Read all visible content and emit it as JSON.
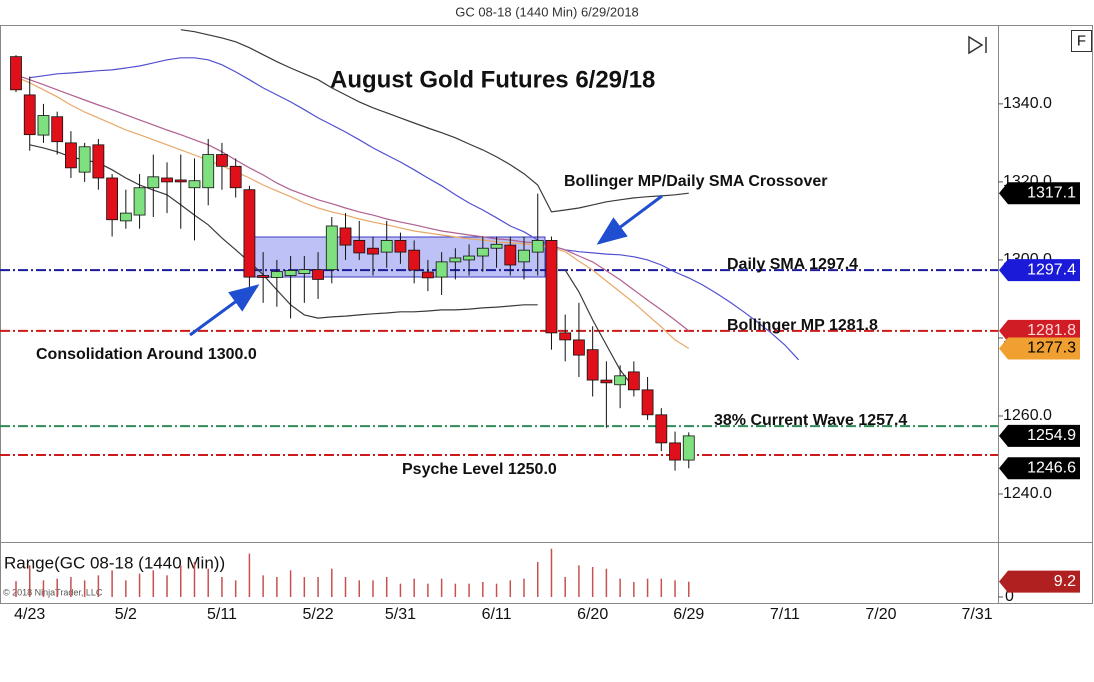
{
  "chart_data": {
    "type": "candlestick",
    "window_title": "GC 08-18 (1440 Min)  6/29/2018",
    "title": "August Gold Futures 6/29/18",
    "button": "F",
    "categories": [
      null,
      "4/23",
      null,
      null,
      null,
      null,
      null,
      null,
      "5/2",
      null,
      null,
      null,
      null,
      null,
      null,
      "5/11",
      null,
      null,
      null,
      null,
      null,
      null,
      "5/22",
      null,
      null,
      null,
      null,
      null,
      "5/31",
      null,
      null,
      null,
      null,
      null,
      null,
      "6/11",
      null,
      null,
      null,
      null,
      null,
      null,
      "6/20",
      null,
      null,
      null,
      null,
      null,
      null,
      "6/29",
      null,
      null,
      null,
      null,
      null,
      null,
      "7/11",
      null,
      null,
      null,
      null,
      null,
      null,
      "7/20",
      null,
      null,
      null,
      null,
      null,
      null,
      "7/31"
    ],
    "open": [
      1352.1,
      1342.3,
      1332,
      1336.7,
      1330,
      1322.5,
      1329.5,
      1321,
      1310,
      1311.5,
      1318.5,
      1321,
      1320.5,
      1318.5,
      1318.5,
      1327,
      1324,
      1318,
      1296,
      1295.5,
      1296,
      1296.5,
      1297.5,
      1297.5,
      1308.2,
      1305,
      1303,
      1302,
      1305,
      1302.5,
      1296.9,
      1295.6,
      1299.5,
      1300,
      1301,
      1303,
      1303.8,
      1299.5,
      1302,
      1305,
      1281.3,
      1279.5,
      1277,
      1269.2,
      1268,
      1271.3,
      1266.7,
      1260.3,
      1253.1,
      1248.7,
      null,
      null,
      null,
      null,
      null,
      null,
      null,
      null,
      null,
      null,
      null,
      null,
      null,
      null,
      null,
      null,
      null,
      null,
      null,
      null,
      null
    ],
    "high": [
      1352.5,
      1347,
      1340,
      1338,
      1333,
      1330,
      1331,
      1322,
      1318,
      1322,
      1327,
      1325,
      1327,
      1326,
      1331,
      1330,
      1326,
      1319,
      1302,
      1300,
      1301,
      1301,
      1302,
      1311,
      1312,
      1310,
      1306,
      1310,
      1307,
      1305,
      1300,
      1302,
      1303,
      1304,
      1306,
      1306,
      1306,
      1306,
      1317,
      1306,
      1286,
      1289,
      1283,
      1274,
      1273,
      1274,
      1270,
      1262,
      1256,
      1255.8,
      null,
      null,
      null,
      null,
      null,
      null,
      null,
      null,
      null,
      null,
      null,
      null,
      null,
      null,
      null,
      null,
      null,
      null,
      null,
      null,
      null
    ],
    "low": [
      1343,
      1328,
      1330,
      1327,
      1321,
      1320,
      1318,
      1306,
      1308,
      1308,
      1311,
      1312,
      1308,
      1305,
      1314,
      1318,
      1316,
      1293,
      1289,
      1288,
      1285,
      1289,
      1290,
      1294,
      1300,
      1300,
      1296,
      1298,
      1299,
      1294,
      1292,
      1291,
      1295,
      1296,
      1297,
      1298,
      1296,
      1295,
      1296,
      1277,
      1274,
      1270,
      1265,
      1257,
      1262,
      1265,
      1259,
      1251,
      1246,
      1246.6,
      null,
      null,
      null,
      null,
      null,
      null,
      null,
      null,
      null,
      null,
      null,
      null,
      null,
      null,
      null,
      null,
      null,
      null,
      null,
      null,
      null
    ],
    "close": [
      1343.6,
      1332.1,
      1337,
      1330.3,
      1323.6,
      1329,
      1321,
      1310.3,
      1312,
      1318.5,
      1321.3,
      1320,
      1320,
      1320.3,
      1327,
      1324,
      1318.5,
      1295.6,
      1295.5,
      1297,
      1297.3,
      1297.5,
      1295,
      1308.7,
      1303.8,
      1301.8,
      1301.5,
      1305,
      1302,
      1297.4,
      1295.4,
      1299.5,
      1300.5,
      1301,
      1303,
      1304,
      1298.7,
      1302.5,
      1305,
      1281.3,
      1279.5,
      1275.6,
      1269.2,
      1268.5,
      1270.3,
      1266.7,
      1260.3,
      1253.1,
      1248.7,
      1254.9,
      null,
      null,
      null,
      null,
      null,
      null,
      null,
      null,
      null,
      null,
      null,
      null,
      null,
      null,
      null,
      null,
      null,
      null,
      null,
      null,
      null
    ],
    "up_color": "#7ee07e",
    "down_color": "#e0101a",
    "ylim": [
      1227.7,
      1359.7
    ],
    "yticks": [
      {
        "value": 1240,
        "label": "1240.0"
      },
      {
        "value": 1260,
        "label": "1260.0"
      },
      {
        "value": 1280,
        "label": "1280.0"
      },
      {
        "value": 1300,
        "label": "1300.0"
      },
      {
        "value": 1320,
        "label": "1320.0"
      },
      {
        "value": 1340,
        "label": "1340.0"
      }
    ],
    "lines": [
      {
        "color": "#3a3a3a",
        "values": [
          null,
          null,
          null,
          null,
          null,
          null,
          null,
          null,
          null,
          null,
          null,
          null,
          1359.0,
          1358.5,
          1357.7,
          1356.9,
          1355.9,
          1354.4,
          1352.6,
          1350.8,
          1349.2,
          1347.7,
          1346.2,
          1344.1,
          1342.3,
          1340.5,
          1339.0,
          1337.7,
          1336.4,
          1335.1,
          1333.8,
          1332.6,
          1331.3,
          1329.7,
          1328.2,
          1326.4,
          1324.4,
          1322.1,
          1319.2,
          1312.3,
          1312.8,
          1313.3,
          1314.1,
          1314.9,
          1315.4,
          1315.9,
          1316.2,
          1316.4,
          1316.7,
          1317.1,
          null,
          null,
          null,
          null,
          null,
          null,
          null,
          null,
          null,
          null,
          null,
          null,
          null,
          null,
          null,
          null,
          null,
          null,
          null,
          null,
          null
        ]
      },
      {
        "color": "#3a3a3a",
        "values": [
          null,
          1329.5,
          1328.7,
          1327.7,
          1326.4,
          1325.6,
          1324.9,
          1323.1,
          1321,
          1319.2,
          1317.9,
          1316.7,
          1314.1,
          1311.5,
          1309,
          1305.6,
          1302.6,
          1299.5,
          1296.2,
          1292.3,
          1288.5,
          1285.9,
          1285.1,
          1285.4,
          1285.6,
          1285.9,
          1286.2,
          1286.4,
          1286.7,
          1286.7,
          1286.9,
          1287.2,
          1287.2,
          1287.4,
          1287.7,
          1287.9,
          1288.2,
          1288.5,
          1288.5,
          null,
          1297.4,
          1291.8,
          1284.6,
          1278.2,
          1271.8,
          1267.2,
          null,
          null,
          null,
          null,
          null,
          null,
          null,
          null,
          null,
          null,
          null,
          null,
          null,
          null,
          null,
          null,
          null,
          null,
          null,
          null,
          null,
          null,
          null,
          null,
          null
        ]
      },
      {
        "color": "#5050d0",
        "values": [
          null,
          1346.7,
          1347.2,
          1347.7,
          1347.9,
          1348.2,
          1348.5,
          1348.7,
          1349.2,
          1349.7,
          1350.5,
          1351.3,
          1351.8,
          1351.8,
          1351.3,
          1350.0,
          1348.2,
          1346.2,
          1344.1,
          1342.3,
          1340.5,
          1338.5,
          1336.4,
          1334.6,
          1332.8,
          1330.8,
          1328.7,
          1326.9,
          1325.1,
          1323.1,
          1321.0,
          1319.0,
          1316.7,
          1314.6,
          1312.8,
          1310.8,
          1308.7,
          1307.2,
          1305.1,
          1303.6,
          1302.6,
          1302.1,
          1301.8,
          1301.5,
          1301.3,
          1300.8,
          1300.0,
          1298.7,
          1296.9,
          1295.4,
          1293.6,
          1291.5,
          1289.2,
          1286.7,
          1284.1,
          1281.3,
          1278.2,
          1274.4,
          null,
          null,
          null,
          null,
          null,
          null,
          null,
          null,
          null,
          null,
          null,
          null,
          null
        ]
      },
      {
        "color": "#b06090",
        "values": [
          1347.4,
          1346.2,
          1344.9,
          1343.6,
          1342.3,
          1341.0,
          1339.7,
          1338.5,
          1337.2,
          1335.9,
          1334.6,
          1333.3,
          1332.1,
          1330.8,
          1329.5,
          1327.7,
          1325.6,
          1323.6,
          1321.8,
          1319.7,
          1318.0,
          1316.7,
          1315.4,
          1314.4,
          1313.3,
          1312.3,
          1311.5,
          1310.5,
          1309.7,
          1309.0,
          1308.2,
          1307.4,
          1306.9,
          1306.4,
          1305.9,
          1305.4,
          1305.1,
          1304.6,
          1304.4,
          1303.6,
          1302.6,
          1301.0,
          1299.5,
          1297.2,
          1294.9,
          1292.3,
          1289.7,
          1287.2,
          1284.6,
          1281.8,
          null,
          null,
          null,
          null,
          null,
          null,
          null,
          null,
          null,
          null,
          null,
          null,
          null,
          null,
          null,
          null,
          null,
          null,
          null,
          null,
          null
        ]
      },
      {
        "color": "#e8a868",
        "values": [
          1346.9,
          1345.4,
          1343.6,
          1341.8,
          1339.7,
          1337.9,
          1336.4,
          1334.9,
          1333.3,
          1332.1,
          1330.8,
          1329.5,
          1328.2,
          1326.9,
          1325.6,
          1324.1,
          1322.6,
          1321.0,
          1319.2,
          1317.7,
          1316.2,
          1314.6,
          1313.3,
          1312.3,
          1311.5,
          1310.5,
          1309.7,
          1309.0,
          1308.2,
          1307.4,
          1306.9,
          1306.4,
          1305.9,
          1305.4,
          1305.1,
          1304.6,
          1304.4,
          1304.1,
          1303.8,
          1303.1,
          1302.1,
          1299.7,
          1297.4,
          1294.6,
          1291.8,
          1289.0,
          1285.9,
          1282.8,
          1279.5,
          1277.3,
          null,
          null,
          null,
          null,
          null,
          null,
          null,
          null,
          null,
          null,
          null,
          null,
          null,
          null,
          null,
          null,
          null,
          null,
          null,
          null,
          null
        ]
      }
    ],
    "levels": [
      {
        "label": "Daily SMA 1297.4",
        "value": 1297.4,
        "color": "#1a1a9a"
      },
      {
        "label": "Bollinger MP 1281.8",
        "value": 1281.8,
        "color": "#cc1a1a"
      },
      {
        "label": "38% Current Wave 1257.4",
        "value": 1257.4,
        "color": "#2e8b57"
      },
      {
        "label": "Psyche Level 1250.0",
        "value": 1250,
        "color": "#cc1a1a"
      }
    ],
    "annotations": [
      "Bollinger MP/Daily SMA Crossover",
      "Consolidation Around 1300.0"
    ],
    "price_markers": [
      {
        "value": 1317.1,
        "color": "#000000",
        "text_color": "#ffffff"
      },
      {
        "value": 1297.4,
        "color": "#1a1ad8",
        "text_color": "#ffffff"
      },
      {
        "value": 1281.8,
        "color": "#d01c24",
        "text_color": "#ffd8d8"
      },
      {
        "value": 1277.3,
        "color": "#f0a030",
        "text_color": "#000000"
      },
      {
        "value": 1254.9,
        "color": "#000000",
        "text_color": "#ffffff"
      },
      {
        "value": 1246.6,
        "color": "#000000",
        "text_color": "#ffffff"
      }
    ],
    "range_panel": {
      "title": "Range(GC 08-18 (1440 Min))",
      "color": "#c85050",
      "values": [
        9.5,
        19,
        10,
        11,
        12,
        10,
        13,
        16,
        10,
        14,
        16,
        13,
        19,
        21,
        17,
        12,
        10,
        26,
        13,
        12,
        16,
        12,
        12,
        17,
        12,
        10,
        10,
        12,
        8,
        11,
        8,
        11,
        8,
        8,
        9,
        8,
        10,
        11,
        21,
        29,
        12,
        19,
        18,
        17,
        11,
        9,
        11,
        11,
        10,
        9.2,
        null,
        null,
        null,
        null,
        null,
        null,
        null,
        null,
        null,
        null,
        null,
        null,
        null,
        null,
        null,
        null,
        null,
        null,
        null,
        null,
        null
      ],
      "ylim": [
        0,
        33
      ],
      "yticks": [
        0
      ],
      "marker": {
        "value": 9.2,
        "color": "#b02020",
        "text_color": "#ffffff"
      }
    },
    "copyright": "© 2018 NinjaTrader, LLC"
  }
}
